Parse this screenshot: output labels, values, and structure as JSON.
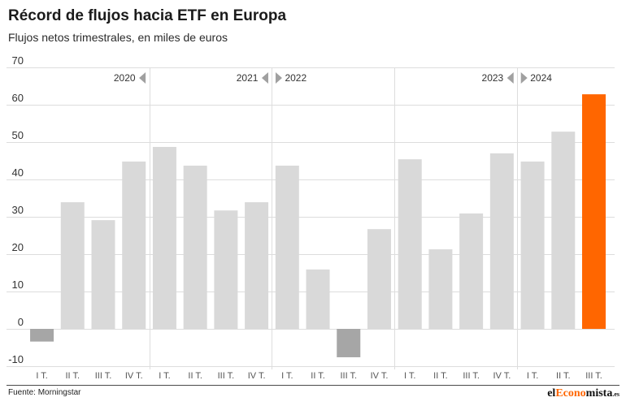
{
  "chart_data": {
    "type": "bar",
    "title": "Récord de flujos hacia ETF en Europa",
    "subtitle": "Flujos netos trimestrales, en miles de euros",
    "ylim": [
      -10,
      70
    ],
    "yticks": [
      70,
      60,
      50,
      40,
      30,
      20,
      10,
      0,
      -10
    ],
    "grid": true,
    "groups": [
      {
        "year": "2020",
        "marker_icon": "triangle-left-icon",
        "categories": [
          "I T.",
          "II T.",
          "III T.",
          "IV T."
        ],
        "values": [
          -3.4,
          33.9,
          29.1,
          44.8
        ]
      },
      {
        "year": "2021",
        "marker_icon": "triangle-left-icon",
        "categories": [
          "I T.",
          "II T.",
          "III T.",
          "IV T."
        ],
        "values": [
          48.7,
          43.7,
          31.7,
          33.9
        ]
      },
      {
        "year": "2022",
        "marker_icon": "triangle-right-icon",
        "categories": [
          "I T.",
          "II T.",
          "III T.",
          "IV T."
        ],
        "values": [
          43.7,
          15.9,
          -7.6,
          26.7
        ]
      },
      {
        "year": "2023",
        "marker_icon": "triangle-left-icon",
        "categories": [
          "I T.",
          "II T.",
          "III T.",
          "IV T."
        ],
        "values": [
          45.4,
          21.3,
          30.9,
          47.0
        ]
      },
      {
        "year": "2024",
        "marker_icon": "triangle-right-icon",
        "categories": [
          "I T.",
          "II T.",
          "III T."
        ],
        "values": [
          44.8,
          52.8,
          62.8
        ]
      }
    ],
    "highlight_index": 18,
    "colors": {
      "bar": "#D9D9D9",
      "negative": "#A6A6A6",
      "highlight": "#FF6600",
      "grid": "#DDDDDD",
      "marker": "#A0A0A0"
    }
  },
  "source": "Fuente: Morningstar",
  "logo": {
    "parts": [
      "el",
      "Econo",
      "mista",
      ".es"
    ],
    "accent": "#FF6600"
  }
}
